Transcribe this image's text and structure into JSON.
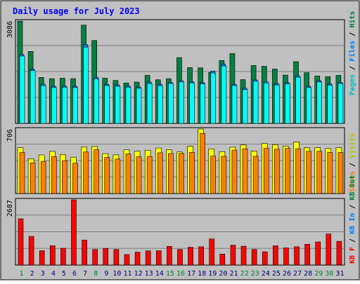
{
  "chart_data": {
    "type": "bar",
    "title": "Daily usage for July 2023",
    "categories": [
      "1",
      "2",
      "3",
      "4",
      "5",
      "6",
      "7",
      "8",
      "9",
      "10",
      "11",
      "12",
      "13",
      "14",
      "15",
      "16",
      "17",
      "18",
      "19",
      "20",
      "21",
      "22",
      "23",
      "24",
      "25",
      "26",
      "27",
      "28",
      "29",
      "30",
      "31"
    ],
    "weekend_days": [
      "1",
      "8",
      "15",
      "16",
      "22",
      "23",
      "29",
      "30"
    ],
    "panels": [
      {
        "id": "hits",
        "ymax": 3086,
        "ymax_label": "3086",
        "legend": [
          "Pages",
          "Files",
          "Hits"
        ],
        "series": [
          {
            "name": "Hits",
            "color": "#008040",
            "values": [
              3086,
              2170,
              1387,
              1350,
              1362,
              1350,
              2963,
              2501,
              1362,
              1294,
              1219,
              1246,
              1450,
              1315,
              1350,
              1985,
              1683,
              1675,
              1535,
              1897,
              2105,
              1320,
              1745,
              1722,
              1640,
              1457,
              1860,
              1530,
              1429,
              1410,
              1450
            ]
          },
          {
            "name": "Files",
            "color": "#0080ff",
            "values": [
              2075,
              1638,
              1185,
              1120,
              1130,
              1120,
              2376,
              1392,
              1180,
              1160,
              1132,
              1100,
              1250,
              1183,
              1240,
              1288,
              1260,
              1230,
              1580,
              1790,
              1178,
              1060,
              1310,
              1260,
              1200,
              1230,
              1436,
              1120,
              1290,
              1190,
              1240
            ]
          },
          {
            "name": "Pages",
            "color": "#00ffff",
            "values": [
              2030,
              1590,
              1140,
              1080,
              1090,
              1080,
              2300,
              1340,
              1140,
              1120,
              1090,
              1060,
              1200,
              1140,
              1200,
              1250,
              1220,
              1190,
              1520,
              1730,
              1140,
              1020,
              1270,
              1220,
              1160,
              1190,
              1390,
              1080,
              1250,
              1150,
              1200
            ]
          }
        ]
      },
      {
        "id": "visits",
        "ymax": 706,
        "ymax_label": "706",
        "legend": [
          "Sites",
          "Visits"
        ],
        "series": [
          {
            "name": "Visits",
            "color": "#ffff00",
            "values": [
              503,
              380,
              423,
              462,
              427,
              398,
              508,
              515,
              437,
              423,
              478,
              463,
              474,
              498,
              478,
              455,
              518,
              706,
              489,
              458,
              507,
              532,
              465,
              547,
              535,
              518,
              564,
              502,
              503,
              493,
              503
            ]
          },
          {
            "name": "Sites",
            "color": "#ff8000",
            "values": [
              449,
              336,
              352,
              405,
              359,
              332,
              455,
              478,
              397,
              377,
              433,
              403,
              406,
              446,
              438,
              440,
              450,
              659,
              410,
              408,
              475,
              490,
              408,
              495,
              485,
              494,
              490,
              462,
              462,
              449,
              449
            ]
          }
        ]
      },
      {
        "id": "kbytes",
        "ymax": 2687,
        "ymax_label": "2687",
        "legend": [
          "KB F",
          "KB In",
          "KB Out"
        ],
        "series": [
          {
            "name": "KB F",
            "color": "#ff0000",
            "values": [
              1907,
              1182,
              592,
              796,
              692,
              2687,
              1030,
              642,
              687,
              642,
              433,
              532,
              585,
              592,
              770,
              641,
              735,
              756,
              1080,
              453,
              820,
              776,
              642,
              546,
              793,
              707,
              757,
              857,
              954,
              1280,
              979
            ]
          }
        ]
      }
    ],
    "colors": {
      "background": "#ffffff",
      "frame": "#c0c0c0",
      "plot": "#c0c0c0",
      "grid": "#808080",
      "title": "#0000ff",
      "axis_label": "#000000",
      "weekday_label": "#000080",
      "weekend_label": "#008040",
      "hits_legend": "#008040",
      "files_legend": "#0080ff",
      "pages_legend": "#00c0c0",
      "visits_legend": "#c0c000",
      "sites_legend": "#ff8000",
      "kbf_legend": "#ff0000",
      "kbin_legend": "#0080ff",
      "kbout_legend": "#008040"
    }
  }
}
